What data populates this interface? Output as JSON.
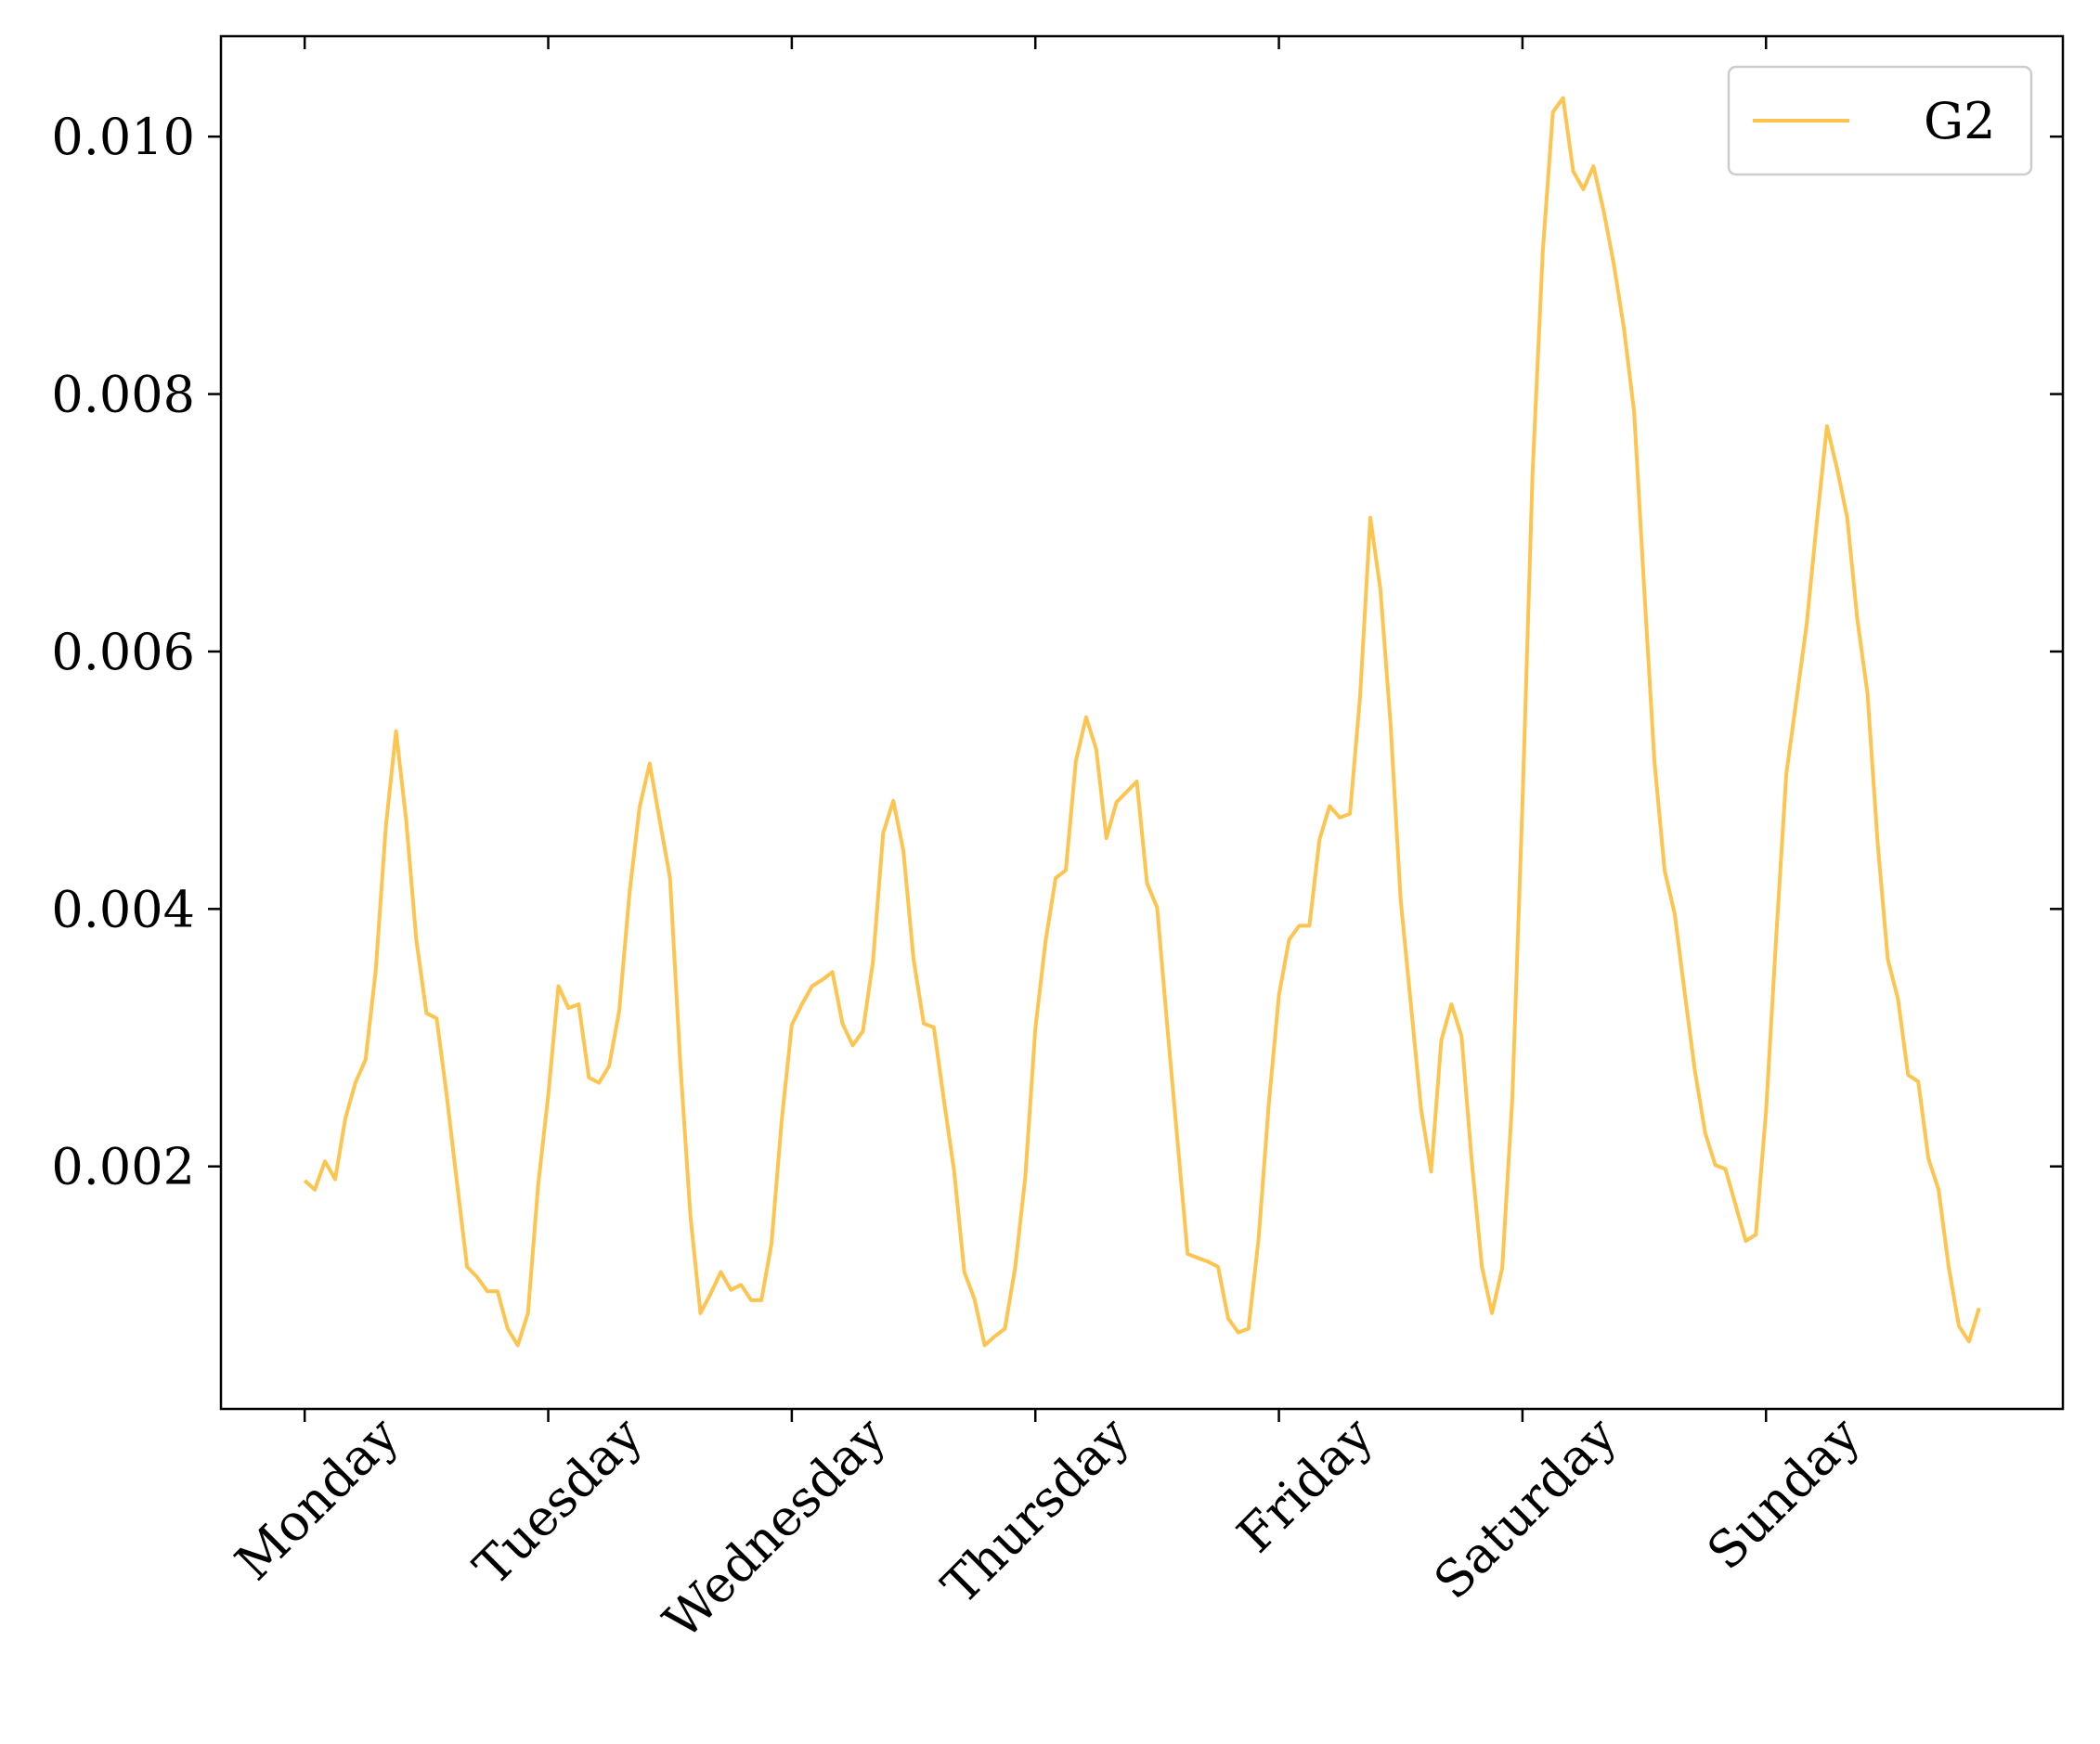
{
  "chart_data": {
    "type": "line",
    "categories": [
      "Monday",
      null,
      null,
      null,
      null,
      null,
      null,
      null,
      null,
      null,
      null,
      null,
      null,
      null,
      null,
      null,
      null,
      null,
      null,
      null,
      null,
      null,
      null,
      null,
      "Tuesday",
      null,
      null,
      null,
      null,
      null,
      null,
      null,
      null,
      null,
      null,
      null,
      null,
      null,
      null,
      null,
      null,
      null,
      null,
      null,
      null,
      null,
      null,
      null,
      "Wednesday",
      null,
      null,
      null,
      null,
      null,
      null,
      null,
      null,
      null,
      null,
      null,
      null,
      null,
      null,
      null,
      null,
      null,
      null,
      null,
      null,
      null,
      null,
      null,
      "Thursday",
      null,
      null,
      null,
      null,
      null,
      null,
      null,
      null,
      null,
      null,
      null,
      null,
      null,
      null,
      null,
      null,
      null,
      null,
      null,
      null,
      null,
      null,
      null,
      "Friday",
      null,
      null,
      null,
      null,
      null,
      null,
      null,
      null,
      null,
      null,
      null,
      null,
      null,
      null,
      null,
      null,
      null,
      null,
      null,
      null,
      null,
      null,
      null,
      "Saturday",
      null,
      null,
      null,
      null,
      null,
      null,
      null,
      null,
      null,
      null,
      null,
      null,
      null,
      null,
      null,
      null,
      null,
      null,
      null,
      null,
      null,
      null,
      null,
      "Sunday",
      null,
      null,
      null,
      null,
      null,
      null,
      null,
      null,
      null,
      null,
      null,
      null,
      null,
      null,
      null,
      null,
      null,
      null,
      null,
      null,
      null
    ],
    "series": [
      {
        "name": "G2",
        "color": "#fdc44f",
        "values": [
          0.00189,
          0.00182,
          0.00204,
          0.0019,
          0.00237,
          0.00265,
          0.00283,
          0.00352,
          0.00464,
          0.00538,
          0.00469,
          0.00376,
          0.00319,
          0.00315,
          0.00255,
          0.00188,
          0.00122,
          0.00114,
          0.00103,
          0.00103,
          0.00074,
          0.00061,
          0.00086,
          0.00185,
          0.00255,
          0.0034,
          0.00323,
          0.00326,
          0.00269,
          0.00265,
          0.00278,
          0.00321,
          0.00412,
          0.00479,
          0.00513,
          0.00468,
          0.00424,
          0.00282,
          0.00162,
          0.00086,
          0.00101,
          0.00118,
          0.00104,
          0.00108,
          0.00096,
          0.00096,
          0.0014,
          0.00235,
          0.0031,
          0.00326,
          0.0034,
          0.00345,
          0.00351,
          0.00311,
          0.00294,
          0.00305,
          0.00359,
          0.00459,
          0.00484,
          0.00445,
          0.00361,
          0.00311,
          0.00308,
          0.00251,
          0.00196,
          0.00118,
          0.00097,
          0.00061,
          0.00068,
          0.00074,
          0.00121,
          0.00191,
          0.00307,
          0.00375,
          0.00424,
          0.0043,
          0.00515,
          0.00549,
          0.00524,
          0.00455,
          0.00483,
          0.00491,
          0.00499,
          0.0042,
          0.00401,
          0.00309,
          0.0022,
          0.00132,
          0.00129,
          0.00126,
          0.00122,
          0.00082,
          0.00071,
          0.00074,
          0.00144,
          0.00248,
          0.00333,
          0.00376,
          0.00387,
          0.00387,
          0.00454,
          0.0048,
          0.00471,
          0.00474,
          0.00565,
          0.00704,
          0.00648,
          0.00544,
          0.00407,
          0.00326,
          0.00245,
          0.00196,
          0.00298,
          0.00326,
          0.00301,
          0.00204,
          0.00122,
          0.00086,
          0.00121,
          0.00253,
          0.00482,
          0.00739,
          0.00911,
          0.01019,
          0.0103,
          0.00973,
          0.00959,
          0.00977,
          0.00942,
          0.00901,
          0.00851,
          0.00786,
          0.00648,
          0.00515,
          0.0043,
          0.00396,
          0.00334,
          0.00274,
          0.00226,
          0.00201,
          0.00198,
          0.0017,
          0.00142,
          0.00147,
          0.00243,
          0.00378,
          0.00505,
          0.00563,
          0.00621,
          0.007,
          0.00775,
          0.00742,
          0.00704,
          0.00625,
          0.00567,
          0.00451,
          0.00361,
          0.0033,
          0.00271,
          0.00266,
          0.00206,
          0.00182,
          0.00122,
          0.00076,
          0.00064,
          0.0009
        ]
      }
    ],
    "ylim": [
      0.000116,
      0.01078
    ],
    "yticks": [
      {
        "value": 0.002,
        "label": "0.002"
      },
      {
        "value": 0.004,
        "label": "0.004"
      },
      {
        "value": 0.006,
        "label": "0.006"
      },
      {
        "value": 0.008,
        "label": "0.008"
      },
      {
        "value": 0.01,
        "label": "0.010"
      }
    ],
    "legend": "upper right"
  }
}
